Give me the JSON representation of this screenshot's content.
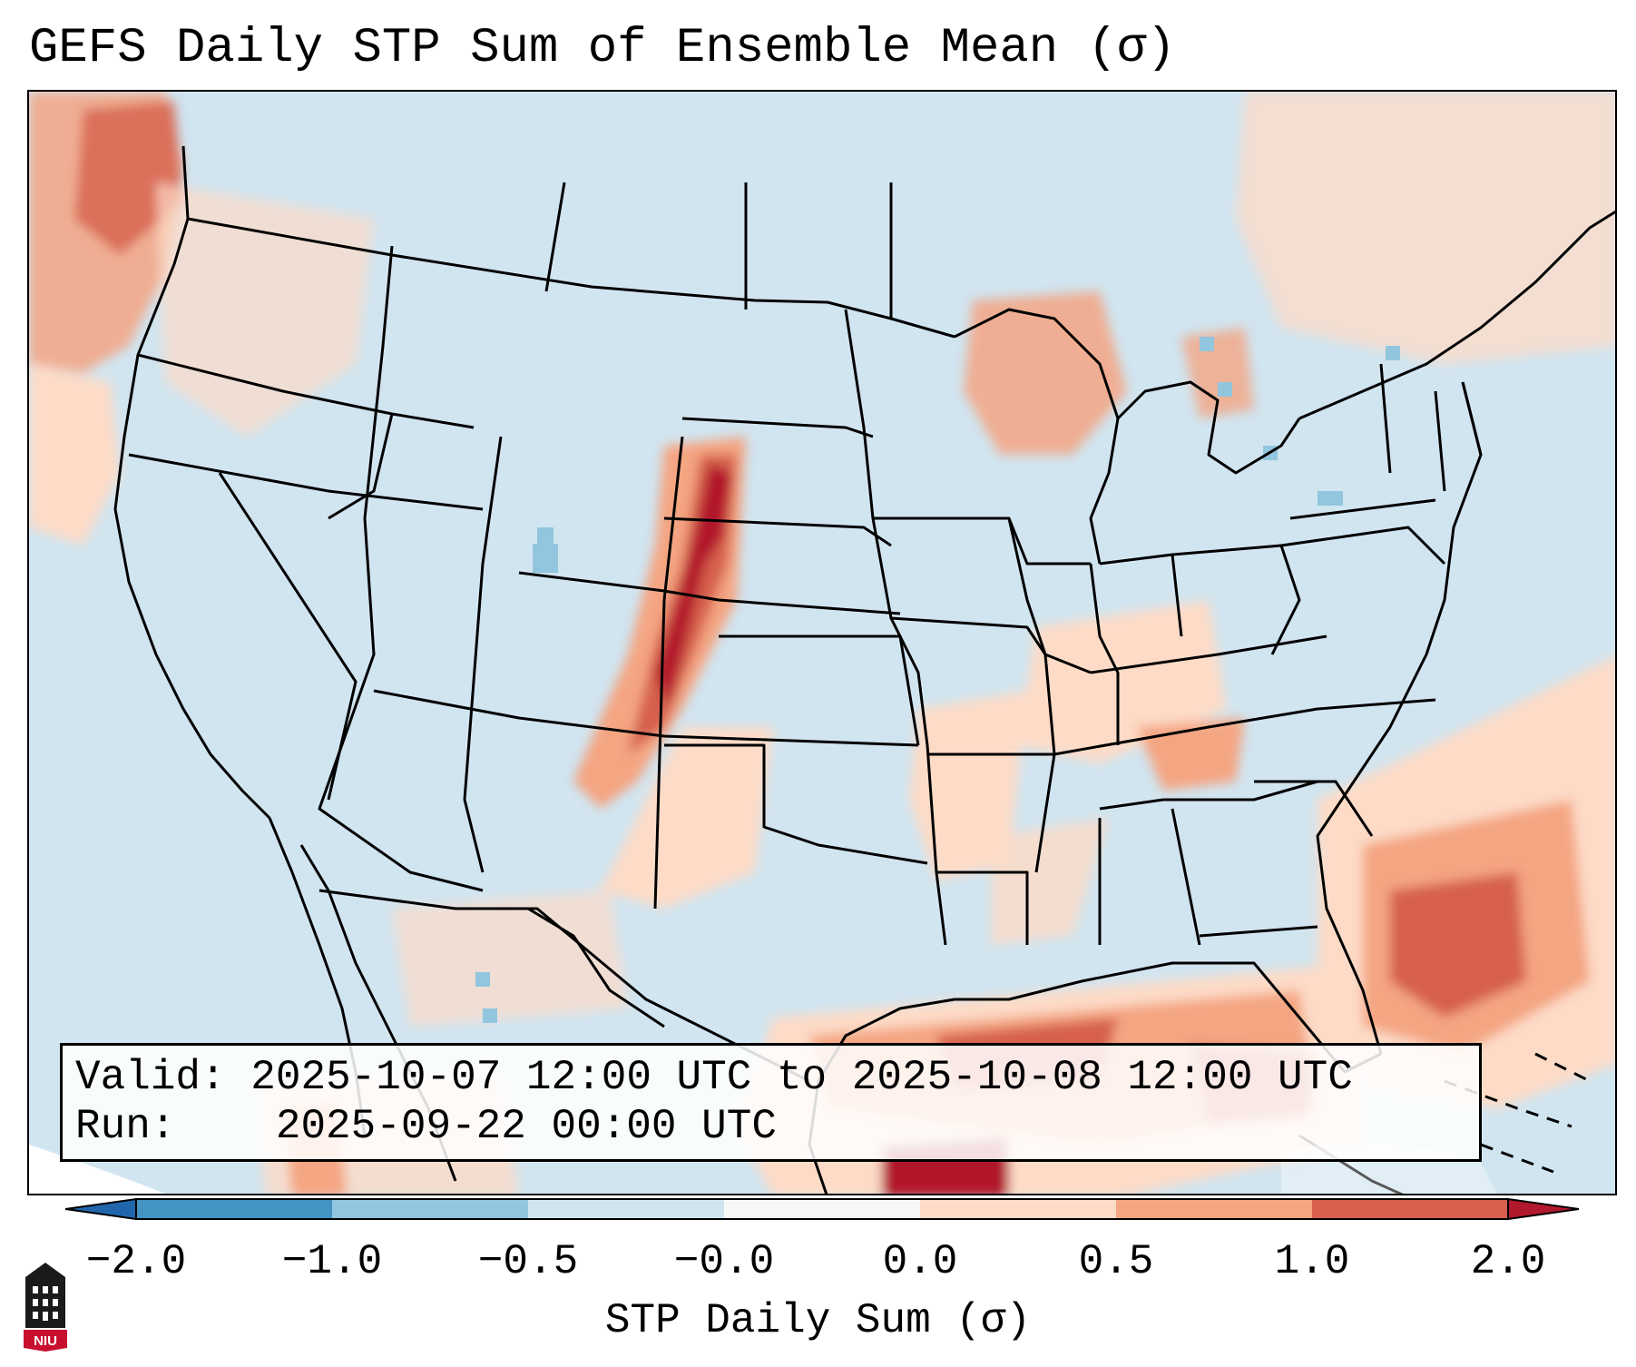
{
  "title": "GEFS Daily STP Sum of Ensemble Mean (σ)",
  "info": {
    "valid_label": "Valid:",
    "valid_value": "2025-10-07 12:00 UTC to 2025-10-08 12:00 UTC",
    "run_label": "Run:",
    "run_value": "2025-09-22 00:00 UTC"
  },
  "colorbar": {
    "label": "STP Daily Sum (σ)",
    "ticks": [
      "−2.0",
      "−1.0",
      "−0.5",
      "−0.0",
      "0.0",
      "0.5",
      "1.0",
      "2.0"
    ],
    "colors": [
      "#2166ac",
      "#4393c3",
      "#92c5de",
      "#d1e5f0",
      "#f7f7f7",
      "#fddbc7",
      "#f4a582",
      "#d6604d",
      "#b2182b"
    ]
  },
  "logo": {
    "text": "NIU",
    "icon": "university-tower-icon"
  },
  "map": {
    "region": "Contiguous United States",
    "ocean_color": "#d1e5f0",
    "anomaly_areas": [
      {
        "name": "pacific-northwest-coast",
        "level": "0.5 to 1.0"
      },
      {
        "name": "central-high-plains",
        "level": "1.0 to 2.0+"
      },
      {
        "name": "great-lakes",
        "level": "0.5 to 1.0"
      },
      {
        "name": "gulf-of-mexico",
        "level": "1.0 to 2.0+"
      },
      {
        "name": "western-atlantic",
        "level": "0.5 to 1.0"
      }
    ]
  }
}
